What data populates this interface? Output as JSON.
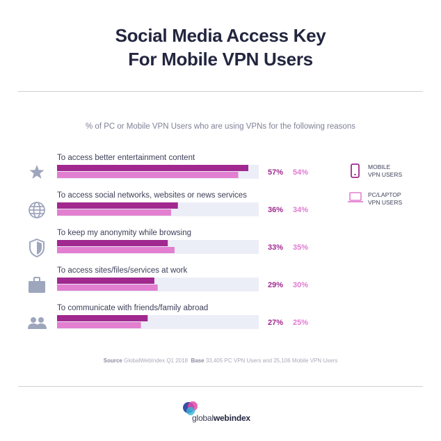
{
  "title": {
    "line1": "Social Media Access Key",
    "line2": "For Mobile VPN Users"
  },
  "subtitle": "% of PC or Mobile VPN Users who are using VPNs for the following reasons",
  "colors": {
    "mobile": "#a0288f",
    "pc": "#e27fd0",
    "track": "#eceef7",
    "icon": "#9ea6bd",
    "mobile_text": "#a0288f",
    "pc_text": "#e07ad0"
  },
  "legend": {
    "mobile": "MOBILE VPN USERS",
    "pc": "PC/LAPTOP VPN USERS"
  },
  "source": {
    "label": "Source",
    "text": "GlobalWebIndex Q1 2018",
    "base_label": "Base",
    "base_text": "33,405 PC VPN Users and 25,106 Mobile VPN Users"
  },
  "logo": {
    "part1": "global",
    "part2": "webindex"
  },
  "chart_data": {
    "type": "bar",
    "orientation": "horizontal",
    "categories": [
      "To access better entertainment content",
      "To access social networks, websites or news services",
      "To keep my anonymity while browsing",
      "To access sites/files/services at work",
      "To communicate with friends/family abroad"
    ],
    "category_icons": [
      "star-icon",
      "globe-icon",
      "shield-icon",
      "briefcase-icon",
      "people-icon"
    ],
    "series": [
      {
        "name": "MOBILE VPN USERS",
        "values": [
          57,
          36,
          33,
          29,
          27
        ]
      },
      {
        "name": "PC/LAPTOP VPN USERS",
        "values": [
          54,
          34,
          35,
          30,
          25
        ]
      }
    ],
    "unit": "%",
    "xlim": [
      0,
      60
    ]
  }
}
